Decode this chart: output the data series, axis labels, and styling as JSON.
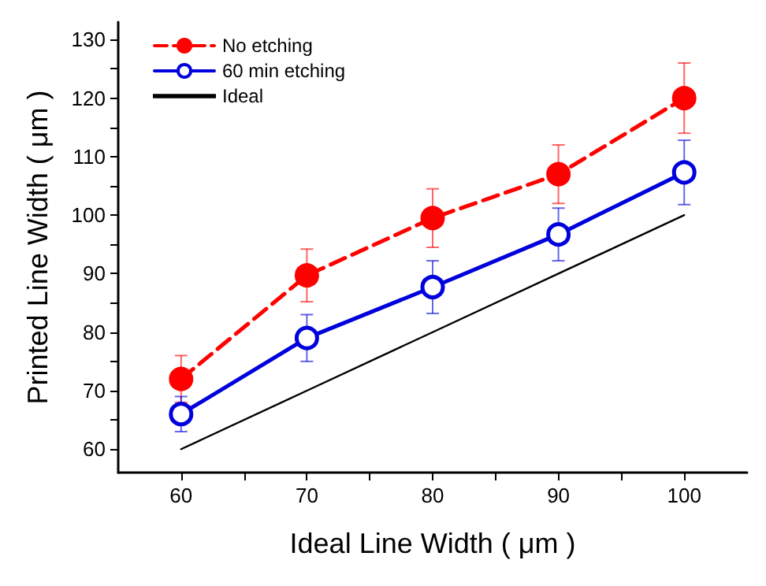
{
  "chart_data": {
    "type": "line",
    "xlabel": "Ideal Line Width ( μm )",
    "ylabel": "Printed Line Width ( μm )",
    "x": [
      60,
      70,
      80,
      90,
      100
    ],
    "series": [
      {
        "name": "No etching",
        "color": "#ff0000",
        "values": [
          72,
          89.7,
          99.5,
          107,
          120
        ],
        "errors": [
          4,
          4.5,
          5,
          5,
          6
        ],
        "marker": "circle",
        "line_style": "dashed"
      },
      {
        "name": "60 min etching",
        "color": "#0000dd",
        "values": [
          66,
          79,
          87.7,
          96.7,
          107.3
        ],
        "errors": [
          3,
          4,
          4.5,
          4.5,
          5.5
        ],
        "marker": "circle",
        "line_style": "solid"
      },
      {
        "name": "Ideal",
        "color": "#000000",
        "values": [
          60,
          70,
          80,
          90,
          100
        ],
        "marker": "none",
        "line_style": "solid"
      }
    ],
    "xlim": [
      55,
      105
    ],
    "xticks": [
      60,
      {
        "value": 65,
        "label": null
      },
      70,
      {
        "value": 75,
        "label": null
      },
      80,
      {
        "value": 85,
        "label": null
      },
      90,
      {
        "value": 95,
        "label": null
      },
      100
    ],
    "ylim": [
      56,
      133
    ],
    "yticks": [
      60,
      {
        "value": 65,
        "label": null
      },
      70,
      {
        "value": 75,
        "label": null
      },
      80,
      {
        "value": 85,
        "label": null
      },
      90,
      {
        "value": 95,
        "label": null
      },
      100,
      {
        "value": 105,
        "label": null
      },
      110,
      {
        "value": 115,
        "label": null
      },
      120,
      {
        "value": 125,
        "label": null
      },
      130
    ],
    "grid": false,
    "legend": "top left"
  }
}
